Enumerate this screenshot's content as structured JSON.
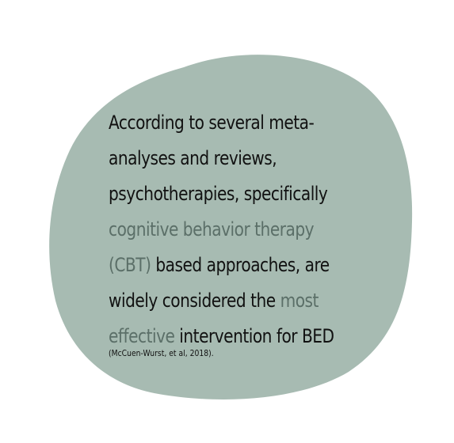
{
  "colors": {
    "blob_fill": "#a7bbb2",
    "text": "#111111",
    "accent": "#5b6f68",
    "background": "#ffffff"
  },
  "quote": {
    "line1": "According to several meta-",
    "line2": "analyses and reviews,",
    "line3": "psychotherapies, specifically",
    "line4_accent": "cognitive behavior therapy",
    "line5_accent": "(CBT)",
    "line5_text": " based approaches, are",
    "line6_text": "widely considered the ",
    "line6_accent": "most",
    "line7_accent": "effective",
    "line7_text": " intervention for BED"
  },
  "citation": "(McCuen-Wurst, et al, 2018)."
}
